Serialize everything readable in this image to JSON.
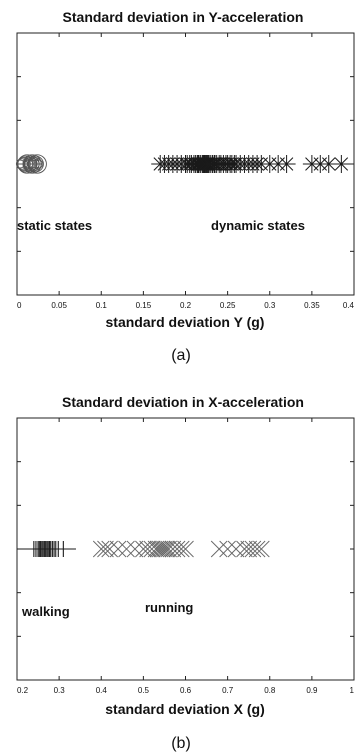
{
  "chart_data": [
    {
      "type": "scatter",
      "title": "Standard deviation in Y-acceleration",
      "xlabel": "standard deviation Y (g)",
      "ylabel": "",
      "xlim": [
        0,
        0.4
      ],
      "xticks": [
        0,
        0.05,
        0.1,
        0.15,
        0.2,
        0.25,
        0.3,
        0.35,
        0.4
      ],
      "xtick_labels": [
        "0",
        "0.05",
        "0.1",
        "0.15",
        "0.2",
        "0.25",
        "0.3",
        "0.35",
        "0.4"
      ],
      "grid": false,
      "annotations": [
        {
          "text": "static states",
          "x": 0.0,
          "anchor": "start"
        },
        {
          "text": "dynamic states",
          "x": 0.27,
          "anchor": "middle"
        }
      ],
      "series": [
        {
          "marker": "circle",
          "color": "#555555",
          "x": [
            0.004,
            0.006,
            0.008,
            0.01,
            0.012,
            0.014,
            0.015,
            0.016,
            0.017,
            0.018,
            0.019,
            0.02,
            0.021,
            0.022,
            0.024,
            0.026
          ]
        },
        {
          "marker": "asterisk",
          "color": "#1a1a1a",
          "x": [
            0.17,
            0.175,
            0.18,
            0.185,
            0.19,
            0.195,
            0.2,
            0.202,
            0.205,
            0.207,
            0.21,
            0.212,
            0.214,
            0.215,
            0.216,
            0.218,
            0.22,
            0.221,
            0.222,
            0.223,
            0.224,
            0.225,
            0.226,
            0.227,
            0.228,
            0.23,
            0.232,
            0.234,
            0.235,
            0.237,
            0.24,
            0.242,
            0.245,
            0.248,
            0.25,
            0.253,
            0.255,
            0.258,
            0.26,
            0.265,
            0.27,
            0.275,
            0.28,
            0.285,
            0.29,
            0.3,
            0.31,
            0.32,
            0.35,
            0.36,
            0.37,
            0.385
          ]
        }
      ]
    },
    {
      "type": "scatter",
      "title": "Standard deviation in X-acceleration",
      "xlabel": "standard deviation X (g)",
      "ylabel": "",
      "xlim": [
        0.2,
        1
      ],
      "xticks": [
        0.2,
        0.3,
        0.4,
        0.5,
        0.6,
        0.7,
        0.8,
        0.9,
        1
      ],
      "xtick_labels": [
        "0.2",
        "0.3",
        "0.4",
        "0.5",
        "0.6",
        "0.7",
        "0.8",
        "0.9",
        "1"
      ],
      "grid": false,
      "annotations": [
        {
          "text": "walking",
          "x": 0.2,
          "anchor": "start"
        },
        {
          "text": "running",
          "x": 0.54,
          "anchor": "middle"
        }
      ],
      "series": [
        {
          "marker": "vline",
          "color": "#1a1a1a",
          "x": [
            0.24,
            0.245,
            0.25,
            0.253,
            0.256,
            0.259,
            0.262,
            0.265,
            0.268,
            0.271,
            0.274,
            0.277,
            0.28,
            0.284,
            0.288,
            0.292,
            0.298,
            0.31
          ]
        },
        {
          "marker": "cross",
          "color": "#666666",
          "x": [
            0.4,
            0.41,
            0.42,
            0.44,
            0.46,
            0.48,
            0.5,
            0.51,
            0.52,
            0.53,
            0.535,
            0.54,
            0.545,
            0.55,
            0.555,
            0.56,
            0.57,
            0.58,
            0.59,
            0.6,
            0.68,
            0.7,
            0.72,
            0.74,
            0.75,
            0.76,
            0.77,
            0.78
          ]
        }
      ]
    }
  ],
  "captions": [
    "(a)",
    "(b)"
  ]
}
